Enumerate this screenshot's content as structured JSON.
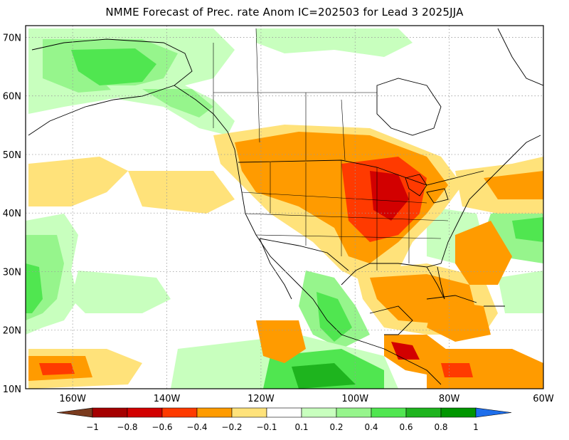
{
  "title": "NMME Forecast of Prec. rate Anom IC=202503 for Lead 3 2025JJA",
  "map": {
    "lon_range": [
      -170,
      -60
    ],
    "lat_range": [
      10,
      72
    ],
    "lon_ticks": [
      {
        "value": -160,
        "label": "160W"
      },
      {
        "value": -140,
        "label": "140W"
      },
      {
        "value": -120,
        "label": "120W"
      },
      {
        "value": -100,
        "label": "100W"
      },
      {
        "value": -80,
        "label": "80W"
      },
      {
        "value": -60,
        "label": "60W"
      }
    ],
    "lat_ticks": [
      {
        "value": 70,
        "label": "70N"
      },
      {
        "value": 60,
        "label": "60N"
      },
      {
        "value": 50,
        "label": "50N"
      },
      {
        "value": 40,
        "label": "40N"
      },
      {
        "value": 30,
        "label": "30N"
      },
      {
        "value": 20,
        "label": "20N"
      },
      {
        "value": 10,
        "label": "10N"
      }
    ],
    "grid": "dotted"
  },
  "colorbar": {
    "levels": [
      {
        "label": "−1",
        "value": -1
      },
      {
        "label": "−0.8",
        "value": -0.8
      },
      {
        "label": "−0.6",
        "value": -0.6
      },
      {
        "label": "−0.4",
        "value": -0.4
      },
      {
        "label": "−0.2",
        "value": -0.2
      },
      {
        "label": "−0.1",
        "value": -0.1
      },
      {
        "label": "0.1",
        "value": 0.1
      },
      {
        "label": "0.2",
        "value": 0.2
      },
      {
        "label": "0.4",
        "value": 0.4
      },
      {
        "label": "0.6",
        "value": 0.6
      },
      {
        "label": "0.8",
        "value": 0.8
      },
      {
        "label": "1",
        "value": 1
      }
    ],
    "colors": [
      "#7a3b1e",
      "#a50000",
      "#d20000",
      "#ff3a00",
      "#ff9b00",
      "#ffe27a",
      "#ffffff",
      "#c8ffbe",
      "#96f58c",
      "#50e650",
      "#1eb41e",
      "#009600",
      "#1e6eeb"
    ]
  }
}
